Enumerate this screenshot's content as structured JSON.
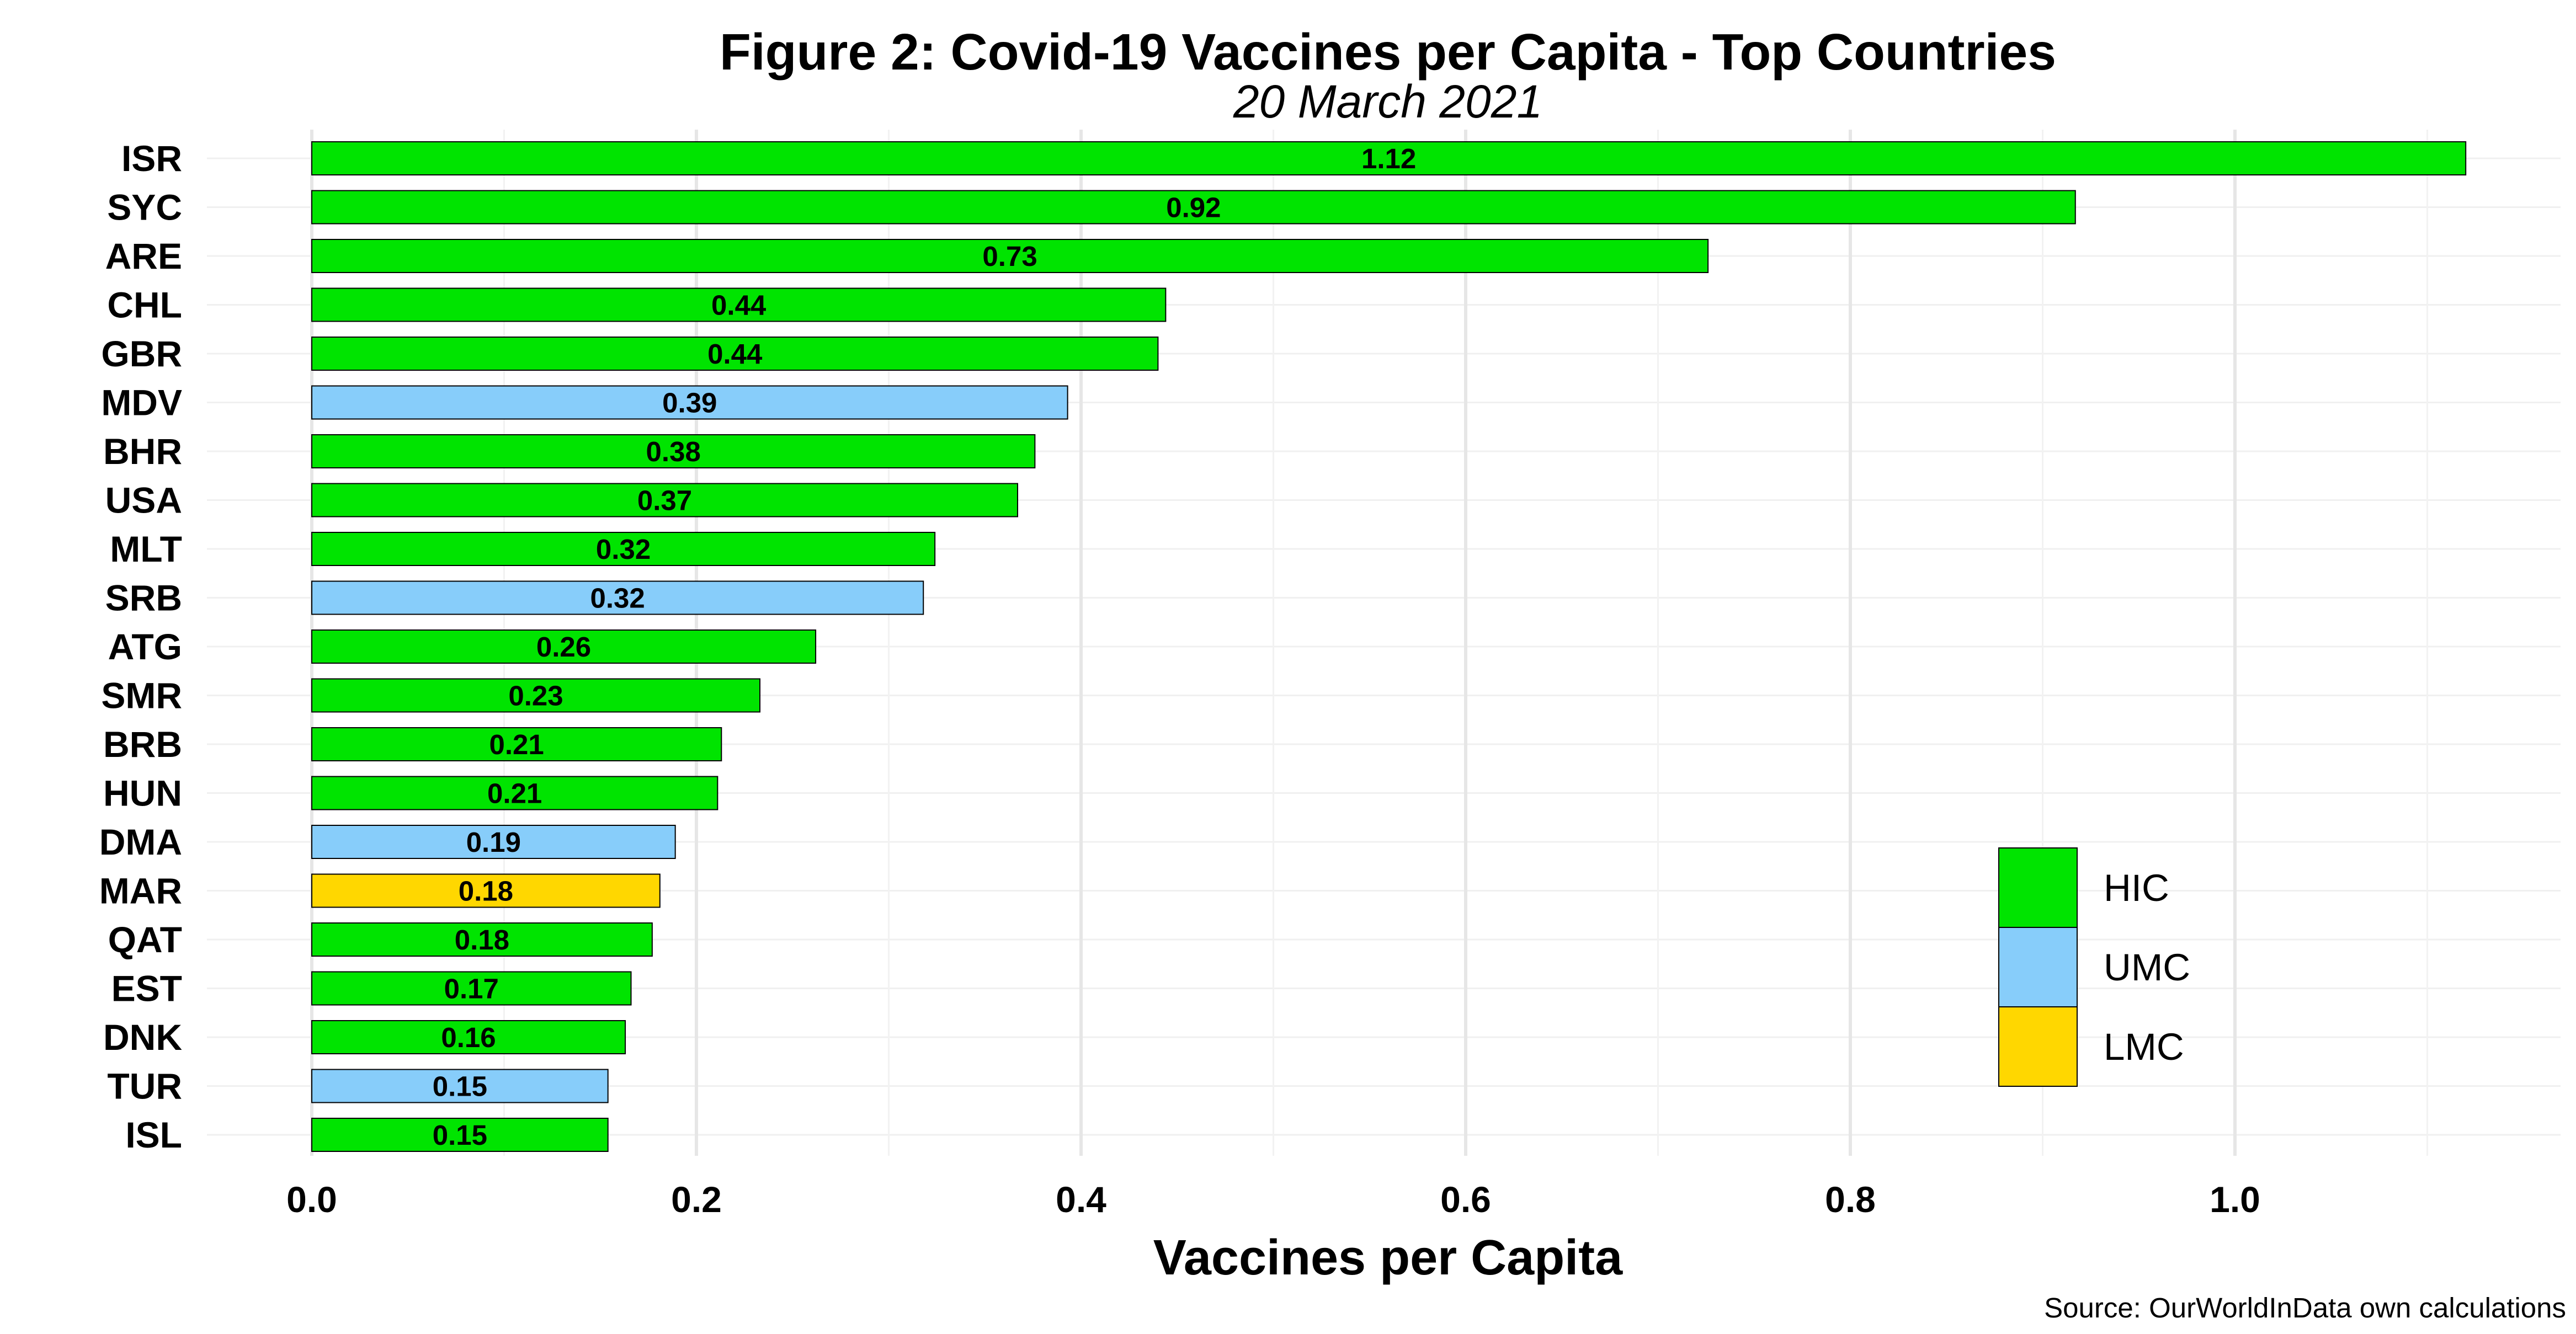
{
  "chart_data": {
    "type": "bar",
    "orientation": "horizontal",
    "title": "Figure 2: Covid-19 Vaccines per Capita - Top Countries",
    "subtitle": "20 March 2021",
    "xlabel": "Vaccines per Capita",
    "ylabel": "",
    "xlim": [
      0,
      1.12
    ],
    "xticks": [
      0.0,
      0.2,
      0.4,
      0.6,
      0.8,
      1.0
    ],
    "xtick_labels": [
      "0.0",
      "0.2",
      "0.4",
      "0.6",
      "0.8",
      "1.0"
    ],
    "categories": [
      "ISR",
      "SYC",
      "ARE",
      "CHL",
      "GBR",
      "MDV",
      "BHR",
      "USA",
      "MLT",
      "SRB",
      "ATG",
      "SMR",
      "BRB",
      "HUN",
      "DMA",
      "MAR",
      "QAT",
      "EST",
      "DNK",
      "TUR",
      "ISL"
    ],
    "values": [
      1.12,
      0.917,
      0.726,
      0.444,
      0.44,
      0.393,
      0.376,
      0.367,
      0.324,
      0.318,
      0.262,
      0.233,
      0.213,
      0.211,
      0.189,
      0.181,
      0.177,
      0.166,
      0.163,
      0.154,
      0.154
    ],
    "value_labels": [
      "1.12",
      "0.92",
      "0.73",
      "0.44",
      "0.44",
      "0.39",
      "0.38",
      "0.37",
      "0.32",
      "0.32",
      "0.26",
      "0.23",
      "0.21",
      "0.21",
      "0.19",
      "0.18",
      "0.18",
      "0.17",
      "0.16",
      "0.15",
      "0.15"
    ],
    "groups": [
      "HIC",
      "HIC",
      "HIC",
      "HIC",
      "HIC",
      "UMC",
      "HIC",
      "HIC",
      "HIC",
      "UMC",
      "HIC",
      "HIC",
      "HIC",
      "HIC",
      "UMC",
      "LMC",
      "HIC",
      "HIC",
      "HIC",
      "UMC",
      "HIC"
    ],
    "legend": {
      "position": "bottom-right",
      "entries": [
        {
          "name": "HIC",
          "color": "#00e400"
        },
        {
          "name": "UMC",
          "color": "#87cdfa"
        },
        {
          "name": "LMC",
          "color": "#ffd700"
        }
      ]
    },
    "grid": true,
    "caption": "Source: OurWorldInData own calculations"
  }
}
